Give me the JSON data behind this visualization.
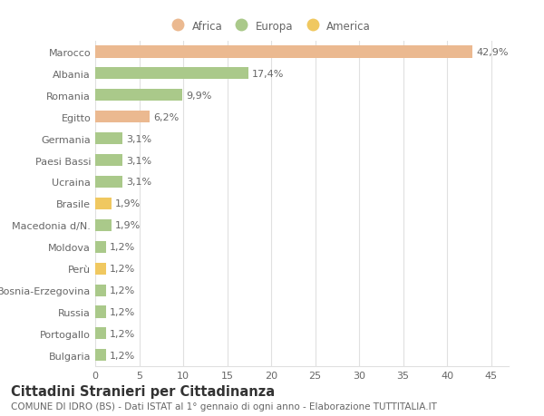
{
  "categories": [
    "Bulgaria",
    "Portogallo",
    "Russia",
    "Bosnia-Erzegovina",
    "Perù",
    "Moldova",
    "Macedonia d/N.",
    "Brasile",
    "Ucraina",
    "Paesi Bassi",
    "Germania",
    "Egitto",
    "Romania",
    "Albania",
    "Marocco"
  ],
  "values": [
    1.2,
    1.2,
    1.2,
    1.2,
    1.2,
    1.2,
    1.9,
    1.9,
    3.1,
    3.1,
    3.1,
    6.2,
    9.9,
    17.4,
    42.9
  ],
  "labels": [
    "1,2%",
    "1,2%",
    "1,2%",
    "1,2%",
    "1,2%",
    "1,2%",
    "1,9%",
    "1,9%",
    "3,1%",
    "3,1%",
    "3,1%",
    "6,2%",
    "9,9%",
    "17,4%",
    "42,9%"
  ],
  "colors": [
    "#aac98a",
    "#aac98a",
    "#aac98a",
    "#aac98a",
    "#f0c860",
    "#aac98a",
    "#aac98a",
    "#f0c860",
    "#aac98a",
    "#aac98a",
    "#aac98a",
    "#ebb990",
    "#aac98a",
    "#aac98a",
    "#ebb990"
  ],
  "legend_labels": [
    "Africa",
    "Europa",
    "America"
  ],
  "legend_colors": [
    "#ebb990",
    "#aac98a",
    "#f0c860"
  ],
  "title": "Cittadini Stranieri per Cittadinanza",
  "subtitle": "COMUNE DI IDRO (BS) - Dati ISTAT al 1° gennaio di ogni anno - Elaborazione TUTTITALIA.IT",
  "xlim": [
    0,
    47
  ],
  "xticks": [
    0,
    5,
    10,
    15,
    20,
    25,
    30,
    35,
    40,
    45
  ],
  "bg_color": "#ffffff",
  "grid_color": "#e0e0e0",
  "bar_height": 0.55,
  "label_fontsize": 8,
  "tick_fontsize": 8,
  "title_fontsize": 10.5,
  "subtitle_fontsize": 7.5
}
